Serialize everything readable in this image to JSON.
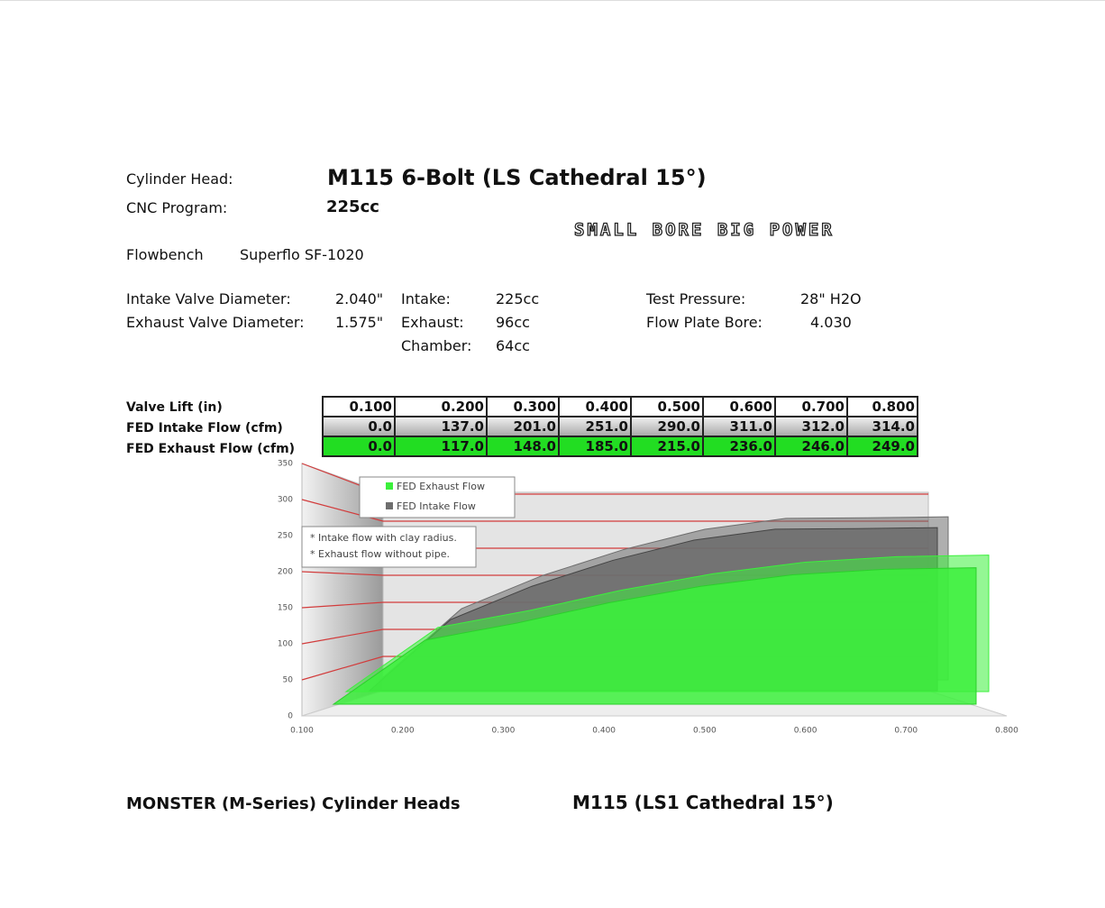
{
  "header": {
    "cylinder_head_label": "Cylinder Head:",
    "cylinder_head": "M115 6-Bolt (LS Cathedral 15°)",
    "cnc_label": "CNC Program:",
    "cnc": "225cc",
    "slogan": "SMALL BORE BIG POWER",
    "flowbench_label": "Flowbench",
    "flowbench": "Superflo SF-1020"
  },
  "specs": [
    {
      "label": "Intake Valve Diameter:",
      "value": "2.040\""
    },
    {
      "label": "Exhaust Valve Diameter:",
      "value": "1.575\""
    },
    {
      "label": "Intake:",
      "value": "225cc"
    },
    {
      "label": "Exhaust:",
      "value": "96cc"
    },
    {
      "label": "Chamber:",
      "value": "64cc"
    },
    {
      "label": "Test Pressure:",
      "value": "28\" H2O"
    },
    {
      "label": "Flow Plate Bore:",
      "value": "4.030"
    }
  ],
  "table": {
    "row_labels": [
      "Valve Lift (in)",
      "FED Intake Flow (cfm)",
      "FED Exhaust Flow (cfm)"
    ],
    "rows": [
      [
        "0.100",
        "0.200",
        "0.300",
        "0.400",
        "0.500",
        "0.600",
        "0.700",
        "0.800"
      ],
      [
        "0.0",
        "137.0",
        "201.0",
        "251.0",
        "290.0",
        "311.0",
        "312.0",
        "314.0"
      ],
      [
        "0.0",
        "117.0",
        "148.0",
        "185.0",
        "215.0",
        "236.0",
        "246.0",
        "249.0"
      ]
    ]
  },
  "chart_data": {
    "type": "area",
    "x": [
      0.1,
      0.2,
      0.3,
      0.4,
      0.5,
      0.6,
      0.7,
      0.8
    ],
    "series": [
      {
        "name": "FED Exhaust Flow",
        "color": "#3cf03c",
        "values": [
          0,
          117,
          148,
          185,
          215,
          236,
          246,
          249
        ]
      },
      {
        "name": "FED Intake Flow",
        "color": "#6e6e6e",
        "values": [
          0,
          137,
          201,
          251,
          290,
          311,
          312,
          314
        ]
      }
    ],
    "xlim": [
      0.1,
      0.8
    ],
    "xticks": [
      {
        "value": 0.1,
        "label": "0.100"
      },
      {
        "value": 0.2,
        "label": "0.200"
      },
      {
        "value": 0.3,
        "label": "0.300"
      },
      {
        "value": 0.4,
        "label": "0.400"
      },
      {
        "value": 0.5,
        "label": "0.500"
      },
      {
        "value": 0.6,
        "label": "0.600"
      },
      {
        "value": 0.7,
        "label": "0.700"
      },
      {
        "value": 0.8,
        "label": "0.800"
      }
    ],
    "ylim": [
      0,
      350
    ],
    "yticks": [
      0,
      50,
      100,
      150,
      200,
      250,
      300,
      350
    ],
    "grid": true,
    "grid_color": "#d23c3c",
    "annotations": [
      "* Intake flow with clay radius.",
      "* Exhaust flow without pipe."
    ]
  },
  "footer": {
    "left": "MONSTER (M-Series) Cylinder Heads",
    "right": "M115 (LS1 Cathedral 15°)"
  }
}
